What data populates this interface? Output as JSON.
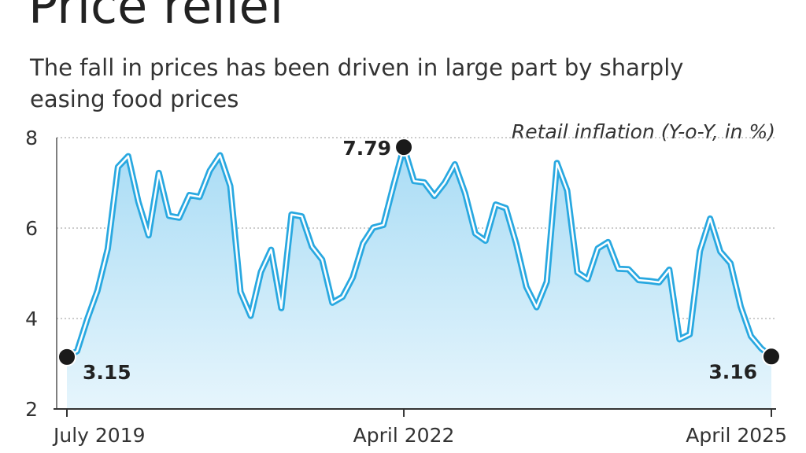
{
  "chart_data": {
    "type": "area",
    "title": "Price relief",
    "subtitle": "The fall in prices has been driven in large part by sharply easing food prices",
    "ylabel": "Retail inflation (Y-o-Y, in %)",
    "categories": [
      "July 2019",
      null,
      null,
      null,
      null,
      null,
      null,
      null,
      null,
      null,
      null,
      null,
      null,
      null,
      null,
      null,
      null,
      null,
      null,
      null,
      null,
      null,
      null,
      null,
      null,
      null,
      null,
      null,
      null,
      null,
      null,
      null,
      null,
      "April 2022",
      null,
      null,
      null,
      null,
      null,
      null,
      null,
      null,
      null,
      null,
      null,
      null,
      null,
      null,
      null,
      null,
      null,
      null,
      null,
      null,
      null,
      null,
      null,
      null,
      null,
      null,
      null,
      null,
      null,
      null,
      null,
      null,
      null,
      null,
      null,
      "April 2025"
    ],
    "values": [
      3.15,
      3.28,
      3.99,
      4.62,
      5.54,
      7.35,
      7.59,
      6.58,
      5.84,
      7.22,
      6.27,
      6.23,
      6.73,
      6.69,
      7.27,
      7.61,
      6.93,
      4.59,
      4.06,
      5.03,
      5.52,
      4.23,
      6.3,
      6.26,
      5.59,
      5.3,
      4.35,
      4.48,
      4.91,
      5.66,
      6.01,
      6.07,
      6.95,
      7.79,
      7.04,
      7.01,
      6.71,
      7.0,
      7.41,
      6.77,
      5.88,
      5.72,
      6.52,
      6.44,
      5.66,
      4.7,
      4.25,
      4.81,
      7.44,
      6.83,
      5.02,
      4.87,
      5.55,
      5.69,
      5.1,
      5.09,
      4.85,
      4.83,
      4.8,
      5.08,
      3.54,
      3.65,
      5.49,
      6.21,
      5.48,
      5.22,
      4.26,
      3.61,
      3.34,
      3.16
    ],
    "color": "#29a8e0",
    "ylim": [
      2,
      8
    ],
    "yticks": [
      2,
      4,
      6,
      8
    ],
    "grid": true
  }
}
